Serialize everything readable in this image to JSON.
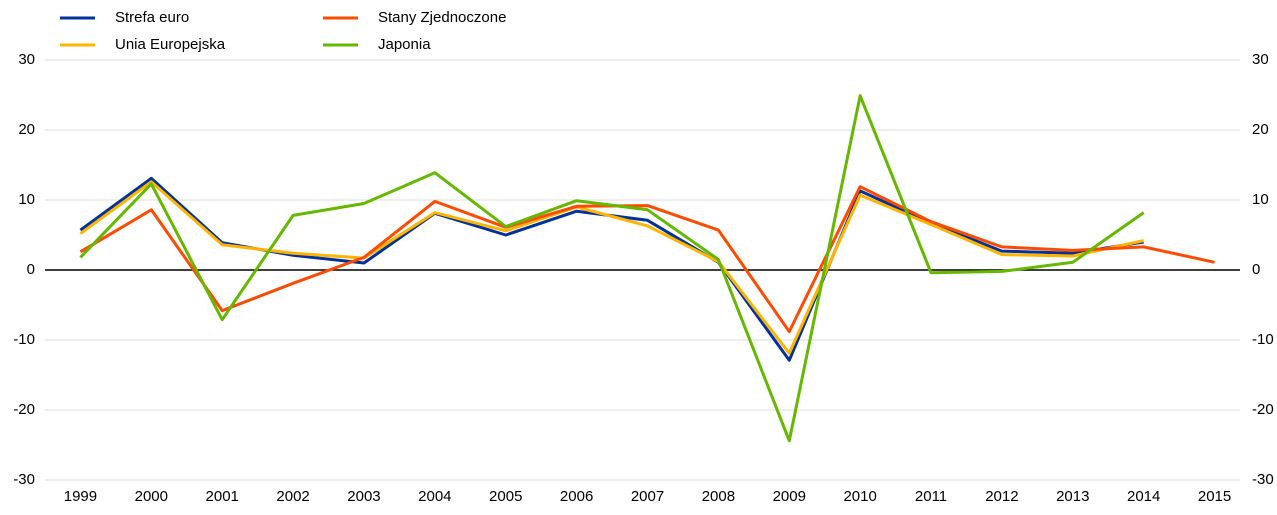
{
  "chart_data": {
    "type": "line",
    "categories": [
      "1999",
      "2000",
      "2001",
      "2002",
      "2003",
      "2004",
      "2005",
      "2006",
      "2007",
      "2008",
      "2009",
      "2010",
      "2011",
      "2012",
      "2013",
      "2014",
      "2015"
    ],
    "series": [
      {
        "name": "Strefa euro",
        "color": "#003299",
        "values": [
          5.7,
          13.1,
          3.9,
          2.1,
          1.0,
          8.1,
          5.0,
          8.4,
          7.1,
          1.1,
          -12.9,
          11.3,
          6.7,
          2.7,
          2.4,
          4.0,
          null
        ]
      },
      {
        "name": "Unia Europejska",
        "color": "#ffb400",
        "values": [
          5.2,
          12.6,
          3.6,
          2.4,
          1.7,
          8.2,
          5.6,
          9.0,
          6.3,
          1.2,
          -11.9,
          10.7,
          6.5,
          2.2,
          2.0,
          4.2,
          null
        ]
      },
      {
        "name": "Stany Zjednoczone",
        "color": "#ff4b00",
        "values": [
          2.6,
          8.6,
          -5.8,
          -1.9,
          1.8,
          9.8,
          6.1,
          9.1,
          9.2,
          5.7,
          -8.8,
          11.9,
          6.9,
          3.3,
          2.8,
          3.3,
          1.1
        ]
      },
      {
        "name": "Japonia",
        "color": "#65b800",
        "values": [
          1.8,
          12.3,
          -7.1,
          7.8,
          9.5,
          13.9,
          6.2,
          9.9,
          8.6,
          1.5,
          -24.4,
          24.9,
          -0.4,
          -0.2,
          1.1,
          8.2,
          null
        ]
      }
    ],
    "ylim": [
      -30,
      30
    ],
    "yticks": [
      -30,
      -20,
      -10,
      0,
      10,
      20,
      30
    ],
    "y2lim": [
      -30,
      30
    ],
    "y2ticks": [
      -30,
      -20,
      -10,
      0,
      10,
      20,
      30
    ],
    "grid": true
  }
}
